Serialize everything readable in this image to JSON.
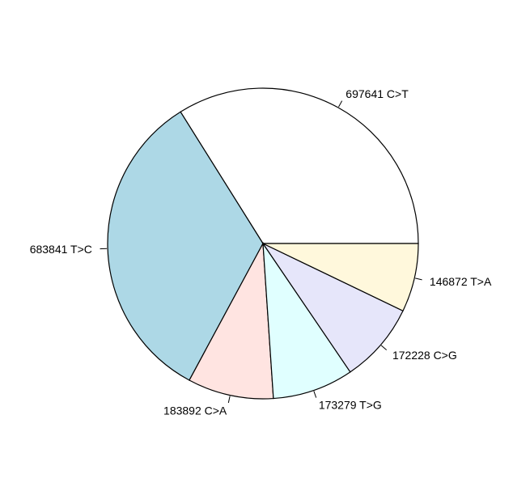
{
  "chart_data": {
    "type": "pie",
    "start_angle_deg": 0,
    "direction": "counterclockwise",
    "slices": [
      {
        "value": 697641,
        "category": "C>T",
        "label": "697641 C>T",
        "color": "#FFFFFF"
      },
      {
        "value": 683841,
        "category": "T>C",
        "label": "683841 T>C",
        "color": "#ADD8E6"
      },
      {
        "value": 183892,
        "category": "C>A",
        "label": "183892 C>A",
        "color": "#FFE4E1"
      },
      {
        "value": 173279,
        "category": "T>G",
        "label": "173279 T>G",
        "color": "#E0FFFF"
      },
      {
        "value": 172228,
        "category": "C>G",
        "label": "172228 C>G",
        "color": "#E6E6FA"
      },
      {
        "value": 146872,
        "category": "T>A",
        "label": "146872 T>A",
        "color": "#FFF8DC"
      }
    ]
  }
}
